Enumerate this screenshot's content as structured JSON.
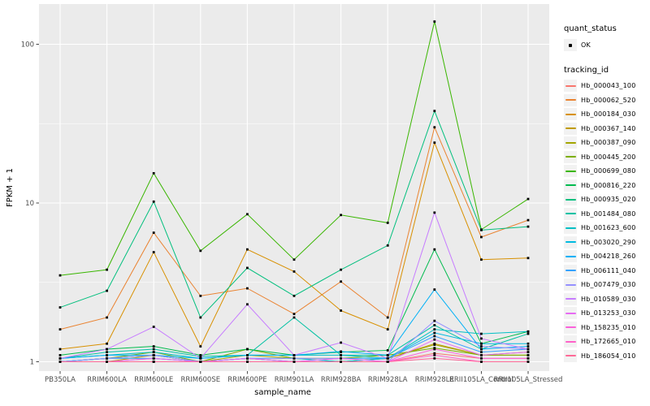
{
  "legend": {
    "quant_status_title": "quant_status",
    "ok_label": "OK",
    "tracking_id_title": "tracking_id"
  },
  "colors": {
    "panel_background": "#ebebeb",
    "gridline": "#ffffff",
    "tick_mark": "#333333",
    "tick_label": "#4d4d4d",
    "axis_title": "#000000",
    "point": "#000000",
    "legend_key_background": "#f2f2f2"
  },
  "chart_data": {
    "type": "line",
    "title": "",
    "xlabel": "sample_name",
    "ylabel": "FPKM + 1",
    "y_scale": "log10",
    "y_tick_values": [
      1,
      10,
      100
    ],
    "y_tick_labels": [
      "1",
      "10",
      "100"
    ],
    "y_minor_values": [
      3.1623,
      31.623
    ],
    "ylim_log": [
      0.955,
      220
    ],
    "grid": "on",
    "legend_position": "right",
    "marker": "small-black-point",
    "quant_status_all_points": "OK",
    "categories": [
      "PB350LA",
      "RRIM600LA",
      "RRIM600LE",
      "RRIM600SE",
      "RRIM600PE",
      "RRIM901LA",
      "RRIM928BA",
      "RRIM928LA",
      "RRIM928LE",
      "RRII105LA_Control",
      "RRII105LA_Stressed"
    ],
    "series": [
      {
        "name": "Hb_000043_100",
        "color": "#F8766D",
        "values": [
          1.0,
          1.0,
          1.05,
          1.0,
          1.0,
          1.0,
          1.0,
          1.0,
          1.13,
          1.05,
          1.05
        ]
      },
      {
        "name": "Hb_000062_520",
        "color": "#EA8331",
        "values": [
          1.6,
          1.9,
          6.5,
          2.6,
          2.9,
          2.0,
          3.2,
          1.9,
          30,
          6.1,
          7.8
        ]
      },
      {
        "name": "Hb_000184_030",
        "color": "#D89000",
        "values": [
          1.2,
          1.3,
          4.9,
          1.25,
          5.1,
          3.7,
          2.1,
          1.6,
          24,
          4.4,
          4.5
        ]
      },
      {
        "name": "Hb_000367_140",
        "color": "#C09B00",
        "values": [
          1.0,
          1.0,
          1.1,
          1.0,
          1.05,
          1.0,
          1.0,
          1.05,
          1.3,
          1.1,
          1.1
        ]
      },
      {
        "name": "Hb_000387_090",
        "color": "#A3A500",
        "values": [
          1.0,
          1.05,
          1.1,
          1.0,
          1.1,
          1.05,
          1.0,
          1.05,
          1.28,
          1.1,
          1.15
        ]
      },
      {
        "name": "Hb_000445_200",
        "color": "#7CAE00",
        "values": [
          1.0,
          1.05,
          1.15,
          1.0,
          1.2,
          1.05,
          1.05,
          1.1,
          1.22,
          1.1,
          1.1
        ]
      },
      {
        "name": "Hb_000699_080",
        "color": "#39B600",
        "values": [
          3.5,
          3.8,
          15.4,
          5.0,
          8.5,
          4.4,
          8.4,
          7.5,
          139,
          6.8,
          10.6
        ]
      },
      {
        "name": "Hb_000816_220",
        "color": "#00BB4E",
        "values": [
          1.1,
          1.2,
          1.25,
          1.1,
          1.2,
          1.1,
          1.15,
          1.18,
          5.1,
          1.3,
          1.55
        ]
      },
      {
        "name": "Hb_000935_020",
        "color": "#00BF7D",
        "values": [
          2.2,
          2.8,
          10.2,
          1.9,
          3.9,
          2.6,
          3.8,
          5.4,
          38,
          6.75,
          7.1
        ]
      },
      {
        "name": "Hb_001484_080",
        "color": "#00C1A3",
        "values": [
          1.05,
          1.15,
          1.2,
          1.08,
          1.1,
          1.9,
          1.1,
          1.1,
          1.7,
          1.2,
          1.5
        ]
      },
      {
        "name": "Hb_001623_600",
        "color": "#00BFC4",
        "values": [
          1.05,
          1.1,
          1.15,
          1.05,
          1.1,
          1.1,
          1.1,
          1.05,
          1.6,
          1.5,
          1.55
        ]
      },
      {
        "name": "Hb_003020_290",
        "color": "#00BAE0",
        "values": [
          1.0,
          1.05,
          1.1,
          1.0,
          1.05,
          1.05,
          1.0,
          1.05,
          1.52,
          1.3,
          1.3
        ]
      },
      {
        "name": "Hb_004218_260",
        "color": "#00B0F6",
        "values": [
          1.05,
          1.1,
          1.1,
          1.05,
          1.1,
          1.1,
          1.16,
          1.1,
          2.85,
          1.2,
          1.25
        ]
      },
      {
        "name": "Hb_006111_040",
        "color": "#35A2FF",
        "values": [
          1.0,
          1.05,
          1.05,
          1.0,
          1.05,
          1.0,
          1.05,
          1.05,
          1.45,
          1.15,
          1.2
        ]
      },
      {
        "name": "Hb_007479_030",
        "color": "#9590FF",
        "values": [
          1.0,
          1.05,
          1.1,
          1.0,
          1.05,
          1.05,
          1.05,
          1.0,
          1.81,
          1.25,
          1.2
        ]
      },
      {
        "name": "Hb_010589_030",
        "color": "#C77CFF",
        "values": [
          1.05,
          1.2,
          1.66,
          1.05,
          2.3,
          1.1,
          1.32,
          1.05,
          8.7,
          1.4,
          1.2
        ]
      },
      {
        "name": "Hb_013253_030",
        "color": "#E76BF3",
        "values": [
          1.0,
          1.0,
          1.05,
          1.0,
          1.05,
          1.0,
          1.05,
          1.0,
          1.38,
          1.1,
          1.15
        ]
      },
      {
        "name": "Hb_158235_010",
        "color": "#FA62DB",
        "values": [
          1.0,
          1.0,
          1.0,
          1.0,
          1.0,
          1.0,
          1.0,
          1.0,
          1.2,
          1.05,
          1.05
        ]
      },
      {
        "name": "Hb_172665_010",
        "color": "#FF61C9",
        "values": [
          1.0,
          1.0,
          1.0,
          1.0,
          1.0,
          1.0,
          1.0,
          1.0,
          1.1,
          1.0,
          1.0
        ]
      },
      {
        "name": "Hb_186054_010",
        "color": "#FF6A98",
        "values": [
          1.0,
          1.0,
          1.0,
          1.0,
          1.0,
          1.0,
          1.0,
          1.0,
          1.05,
          1.0,
          1.0
        ]
      }
    ]
  }
}
